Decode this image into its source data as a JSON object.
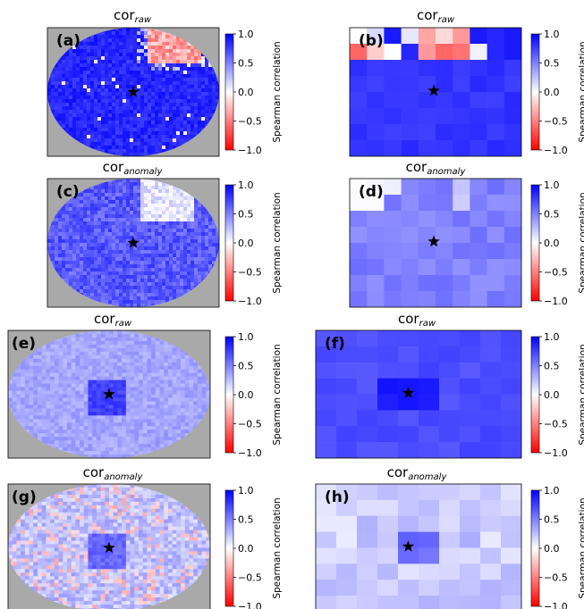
{
  "colors": {
    "neg": "#ff0000",
    "zero": "#ffffff",
    "pos": "#0000ff",
    "mask": "#a9a9a9",
    "star": "#000000"
  },
  "colorbar": {
    "label": "Spearman correlation",
    "ticks": [
      "1.0",
      "0.5",
      "0.0",
      "−0.5",
      "−1.0"
    ],
    "range": [
      -1.0,
      1.0
    ]
  },
  "chart_data": [
    {
      "type": "heatmap",
      "panel": "(a)",
      "title_main": "cor",
      "title_sub": "raw",
      "layout": "ellipse-masked",
      "typical_correlation": 0.85,
      "features": "positive correlation almost everywhere; red (negative) patch in the upper-right part of the ellipse"
    },
    {
      "type": "heatmap",
      "panel": "(b)",
      "title_main": "cor",
      "title_sub": "raw",
      "layout": "coarse-grid",
      "typical_correlation": 0.85,
      "features": "strong positive except top two rows where several cells are negative (reds)"
    },
    {
      "type": "heatmap",
      "panel": "(c)",
      "title_main": "cor",
      "title_sub": "anomaly",
      "layout": "ellipse-masked",
      "typical_correlation": 0.65,
      "features": "mostly positive, weak/near-zero patch in upper-right area"
    },
    {
      "type": "heatmap",
      "panel": "(d)",
      "title_main": "cor",
      "title_sub": "anomaly",
      "layout": "coarse-grid",
      "typical_correlation": 0.5,
      "features": "moderate positive, near-zero cells in top-left corner"
    },
    {
      "type": "heatmap",
      "panel": "(e)",
      "title_main": "cor",
      "title_sub": "raw",
      "layout": "ellipse-masked",
      "typical_correlation": 0.35,
      "features": "light blue field with darker blue square around the star"
    },
    {
      "type": "heatmap",
      "panel": "(f)",
      "title_main": "cor",
      "title_sub": "raw",
      "layout": "coarse-grid",
      "typical_correlation": 0.7,
      "features": "uniform medium-strong positive, strongest cells around the star"
    },
    {
      "type": "heatmap",
      "panel": "(g)",
      "title_main": "cor",
      "title_sub": "anomaly",
      "layout": "ellipse-masked",
      "typical_correlation": 0.25,
      "features": "weak positive, scattered light red (negative) patches, darker square around the star"
    },
    {
      "type": "heatmap",
      "panel": "(h)",
      "title_main": "cor",
      "title_sub": "anomaly",
      "layout": "coarse-grid",
      "typical_correlation": 0.2,
      "features": "weak positive mostly, a few near-zero/slightly negative cells, stronger cells at the star"
    }
  ]
}
